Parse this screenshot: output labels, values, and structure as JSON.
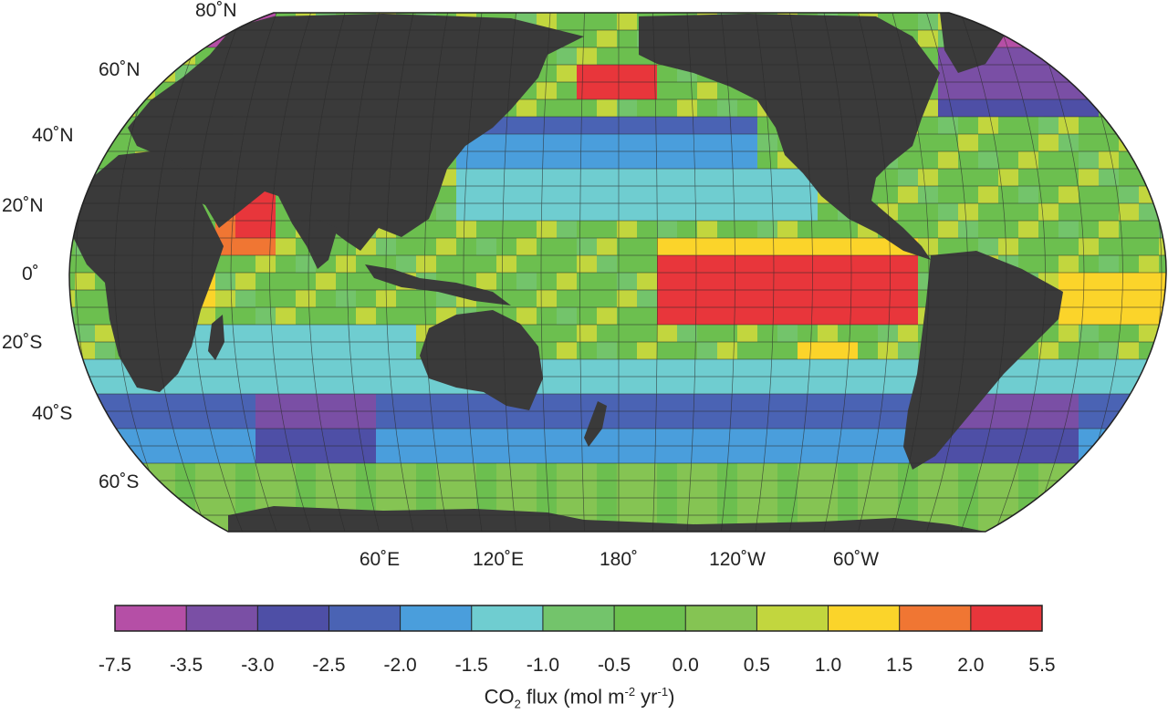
{
  "latitude_labels": [
    "80˚N",
    "60˚N",
    "40˚N",
    "20˚N",
    "0˚",
    "20˚S",
    "40˚S",
    "60˚S"
  ],
  "longitude_labels": [
    "60˚E",
    "120˚E",
    "180˚",
    "120˚W",
    "60˚W"
  ],
  "colorbar": {
    "ticks": [
      "-7.5",
      "-3.5",
      "-3.0",
      "-2.5",
      "-2.0",
      "-1.5",
      "-1.0",
      "-0.5",
      "0.0",
      "0.5",
      "1.0",
      "1.5",
      "2.0",
      "5.5"
    ],
    "colors": [
      "#b54fa6",
      "#7a4fa5",
      "#4e4fa6",
      "#4a63b4",
      "#4a9edc",
      "#6fcdd0",
      "#73c46b",
      "#6cbf4f",
      "#85c453",
      "#c2d63e",
      "#fbd42a",
      "#f07633",
      "#e8363b"
    ],
    "title_prefix": "CO",
    "title_sub": "2",
    "title_mid": " flux (mol m",
    "title_sup1": "-2",
    "title_mid2": " yr",
    "title_sup2": "-1",
    "title_suffix": ")"
  },
  "map": {
    "land_color": "#3a3a3a",
    "missing_color": "#ffffff",
    "grid_color": "#2a2a2a"
  }
}
